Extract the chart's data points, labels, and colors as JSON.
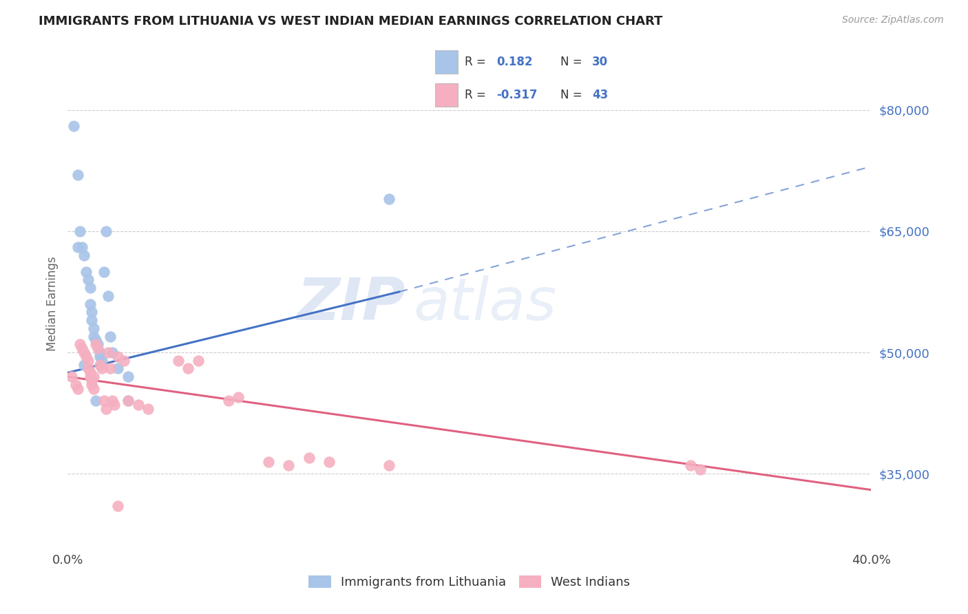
{
  "title": "IMMIGRANTS FROM LITHUANIA VS WEST INDIAN MEDIAN EARNINGS CORRELATION CHART",
  "source": "Source: ZipAtlas.com",
  "ylabel": "Median Earnings",
  "xmin": 0.0,
  "xmax": 0.4,
  "ymin": 26000,
  "ymax": 86000,
  "yticks": [
    35000,
    50000,
    65000,
    80000
  ],
  "ytick_labels": [
    "$35,000",
    "$50,000",
    "$65,000",
    "$80,000"
  ],
  "blue_R": 0.182,
  "blue_N": 30,
  "pink_R": -0.317,
  "pink_N": 43,
  "blue_color": "#a8c4e8",
  "pink_color": "#f5afc0",
  "blue_line_color": "#4472c4",
  "pink_line_color": "#e06080",
  "legend_blue_label": "Immigrants from Lithuania",
  "legend_pink_label": "West Indians",
  "watermark_zip": "ZIP",
  "watermark_atlas": "atlas",
  "blue_trend_x0": 0.0,
  "blue_trend_y0": 47500,
  "blue_trend_x1": 0.165,
  "blue_trend_y1": 57500,
  "blue_trend_xdash": 0.165,
  "blue_trend_ydash": 57500,
  "blue_trend_xend": 0.4,
  "blue_trend_yend": 73000,
  "pink_trend_x0": 0.0,
  "pink_trend_y0": 47000,
  "pink_trend_x1": 0.4,
  "pink_trend_y1": 33000,
  "blue_points_x": [
    0.003,
    0.005,
    0.006,
    0.007,
    0.008,
    0.009,
    0.01,
    0.011,
    0.011,
    0.012,
    0.012,
    0.013,
    0.013,
    0.014,
    0.015,
    0.016,
    0.016,
    0.017,
    0.018,
    0.019,
    0.02,
    0.021,
    0.022,
    0.025,
    0.03,
    0.03,
    0.008,
    0.16,
    0.005,
    0.014
  ],
  "blue_points_y": [
    78000,
    72000,
    65000,
    63000,
    62000,
    60000,
    59000,
    58000,
    56000,
    55000,
    54000,
    53000,
    52000,
    51500,
    51000,
    50000,
    49500,
    49000,
    60000,
    65000,
    57000,
    52000,
    50000,
    48000,
    47000,
    44000,
    48500,
    69000,
    63000,
    44000
  ],
  "pink_points_x": [
    0.002,
    0.004,
    0.005,
    0.006,
    0.007,
    0.008,
    0.009,
    0.01,
    0.01,
    0.011,
    0.011,
    0.012,
    0.012,
    0.013,
    0.013,
    0.014,
    0.015,
    0.016,
    0.017,
    0.018,
    0.019,
    0.02,
    0.021,
    0.022,
    0.023,
    0.025,
    0.028,
    0.03,
    0.035,
    0.04,
    0.055,
    0.06,
    0.065,
    0.08,
    0.085,
    0.1,
    0.11,
    0.12,
    0.13,
    0.16,
    0.31,
    0.315,
    0.025
  ],
  "pink_points_y": [
    47000,
    46000,
    45500,
    51000,
    50500,
    50000,
    49500,
    49000,
    48000,
    47500,
    47000,
    46500,
    46000,
    45500,
    47000,
    51000,
    50500,
    48500,
    48000,
    44000,
    43000,
    50000,
    48000,
    44000,
    43500,
    49500,
    49000,
    44000,
    43500,
    43000,
    49000,
    48000,
    49000,
    44000,
    44500,
    36500,
    36000,
    37000,
    36500,
    36000,
    36000,
    35500,
    31000
  ]
}
